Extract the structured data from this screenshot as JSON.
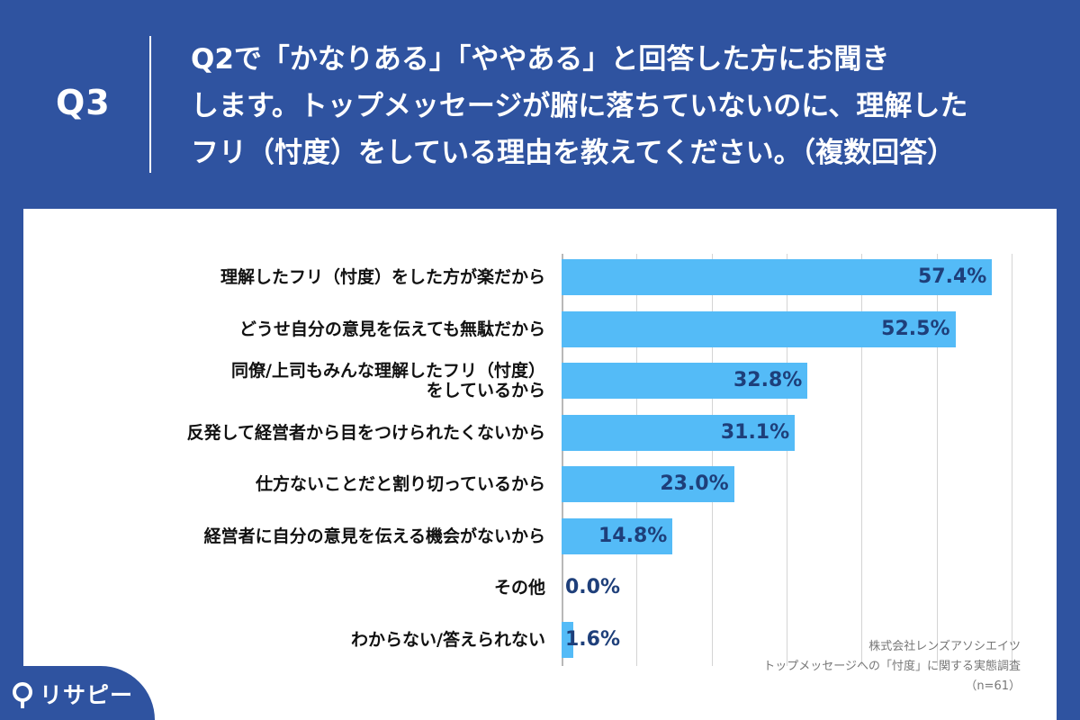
{
  "header": {
    "q_label": "Q3",
    "question": "Q2で「かなりある」「ややある」と回答した方にお聞き\nします。トップメッセージが腑に落ちていないのに、理解した\nフリ（忖度）をしている理由を教えてください。（複数回答）"
  },
  "chart_data": {
    "type": "bar",
    "orientation": "horizontal",
    "categories": [
      "理解したフリ（忖度）をした方が楽だから",
      "どうせ自分の意見を伝えても無駄だから",
      "同僚/上司もみんな理解したフリ（忖度）\nをしているから",
      "反発して経営者から目をつけられたくないから",
      "仕方ないことだと割り切っているから",
      "経営者に自分の意見を伝える機会がないから",
      "その他",
      "わからない/答えられない"
    ],
    "values": [
      57.4,
      52.5,
      32.8,
      31.1,
      23.0,
      14.8,
      0.0,
      1.6
    ],
    "value_labels": [
      "57.4%",
      "52.5%",
      "32.8%",
      "31.1%",
      "23.0%",
      "14.8%",
      "0.0%",
      "1.6%"
    ],
    "xlim": [
      0,
      60
    ],
    "grid": true,
    "bar_color": "#54bbf7"
  },
  "source": {
    "line1": "株式会社レンズアソシエイツ",
    "line2": "トップメッセージへの「忖度」に関する実態調査",
    "line3": "（n=61）"
  },
  "logo": {
    "text": "リサピー"
  },
  "colors": {
    "background": "#2f53a0",
    "panel": "#ffffff",
    "bar": "#54bbf7",
    "value_text": "#1e3f7a"
  }
}
